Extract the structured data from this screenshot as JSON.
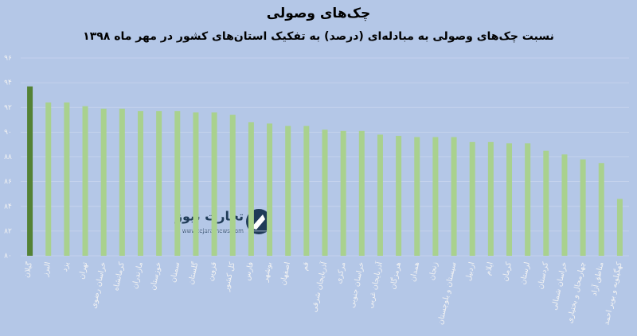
{
  "chart_data": {
    "type": "bar",
    "title": "چک‌های وصولی",
    "subtitle": "نسبت چک‌های وصولی به مبادله‌ای (درصد) به تفکیک استان‌های کشور در مهر ماه ۱۳۹۸",
    "categories": [
      "گیلان",
      "البرز",
      "یزد",
      "تهران",
      "خراسان رضوی",
      "کرمانشاه",
      "مازندران",
      "خوزستان",
      "سمنان",
      "گلستان",
      "قزوین",
      "کل کشور",
      "فارس",
      "بوشهر",
      "اصفهان",
      "قم",
      "آذربایجان شرقی",
      "مرکزی",
      "خراسان جنوبی",
      "آذربایجان غربی",
      "هرمزگان",
      "همدان",
      "زنجان",
      "سیستان و بلوچستان",
      "اردبیل",
      "ایلام",
      "کرمان",
      "لرستان",
      "کردستان",
      "خراسان شمالی",
      "چهارمحال و بختیاری",
      "مناطق آزاد",
      "کهگیلویه و بویر احمد"
    ],
    "values": [
      93.7,
      92.4,
      92.4,
      92.1,
      91.9,
      91.9,
      91.7,
      91.7,
      91.7,
      91.6,
      91.6,
      91.4,
      90.8,
      90.7,
      90.5,
      90.5,
      90.2,
      90.1,
      90.1,
      89.8,
      89.7,
      89.6,
      89.6,
      89.6,
      89.2,
      89.2,
      89.1,
      89.1,
      88.5,
      88.2,
      87.8,
      87.5,
      84.6
    ],
    "colors": [
      "#548235",
      "#a9d18e",
      "#a9d18e",
      "#a9d18e",
      "#a9d18e",
      "#a9d18e",
      "#a9d18e",
      "#a9d18e",
      "#a9d18e",
      "#a9d18e",
      "#a9d18e",
      "#a9d18e",
      "#a9d18e",
      "#a9d18e",
      "#a9d18e",
      "#a9d18e",
      "#a9d18e",
      "#a9d18e",
      "#a9d18e",
      "#a9d18e",
      "#a9d18e",
      "#a9d18e",
      "#a9d18e",
      "#a9d18e",
      "#a9d18e",
      "#a9d18e",
      "#a9d18e",
      "#a9d18e",
      "#a9d18e",
      "#a9d18e",
      "#a9d18e",
      "#a9d18e",
      "#a9d18e"
    ],
    "ylim": [
      80,
      96
    ],
    "yticks": [
      {
        "value": 80,
        "label": "۸۰"
      },
      {
        "value": 82,
        "label": "۸۲"
      },
      {
        "value": 84,
        "label": "۸۴"
      },
      {
        "value": 86,
        "label": "۸۶"
      },
      {
        "value": 88,
        "label": "۸۸"
      },
      {
        "value": 90,
        "label": "۹۰"
      },
      {
        "value": 92,
        "label": "۹۲"
      },
      {
        "value": 94,
        "label": "۹۴"
      },
      {
        "value": 96,
        "label": "۹۶"
      }
    ],
    "grid": true,
    "watermark": {
      "name": "تجارت نیوز",
      "url": "www.tejaratnews.com"
    }
  }
}
